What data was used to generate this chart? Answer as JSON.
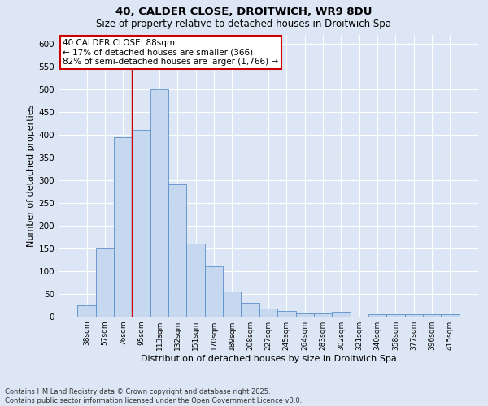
{
  "title_line1": "40, CALDER CLOSE, DROITWICH, WR9 8DU",
  "title_line2": "Size of property relative to detached houses in Droitwich Spa",
  "categories": [
    "38sqm",
    "57sqm",
    "76sqm",
    "95sqm",
    "113sqm",
    "132sqm",
    "151sqm",
    "170sqm",
    "189sqm",
    "208sqm",
    "227sqm",
    "245sqm",
    "264sqm",
    "283sqm",
    "302sqm",
    "321sqm",
    "340sqm",
    "358sqm",
    "377sqm",
    "396sqm",
    "415sqm"
  ],
  "values": [
    25,
    150,
    395,
    410,
    500,
    290,
    160,
    110,
    55,
    30,
    17,
    12,
    8,
    8,
    10,
    0,
    5,
    6,
    6,
    6,
    6
  ],
  "bar_color": "#c5d8f0",
  "bar_edge_color": "#5b8fc9",
  "background_color": "#dde6f5",
  "ylabel": "Number of detached properties",
  "xlabel": "Distribution of detached houses by size in Droitwich Spa",
  "ylim": [
    0,
    620
  ],
  "yticks": [
    0,
    50,
    100,
    150,
    200,
    250,
    300,
    350,
    400,
    450,
    500,
    550,
    600
  ],
  "red_line_x": 2.5,
  "annotation_title": "40 CALDER CLOSE: 88sqm",
  "annotation_line1": "← 17% of detached houses are smaller (366)",
  "annotation_line2": "82% of semi-detached houses are larger (1,766) →",
  "annotation_box_color": "#ffffff",
  "annotation_box_edge": "#cc0000",
  "footnote": "Contains HM Land Registry data © Crown copyright and database right 2025.\nContains public sector information licensed under the Open Government Licence v3.0."
}
